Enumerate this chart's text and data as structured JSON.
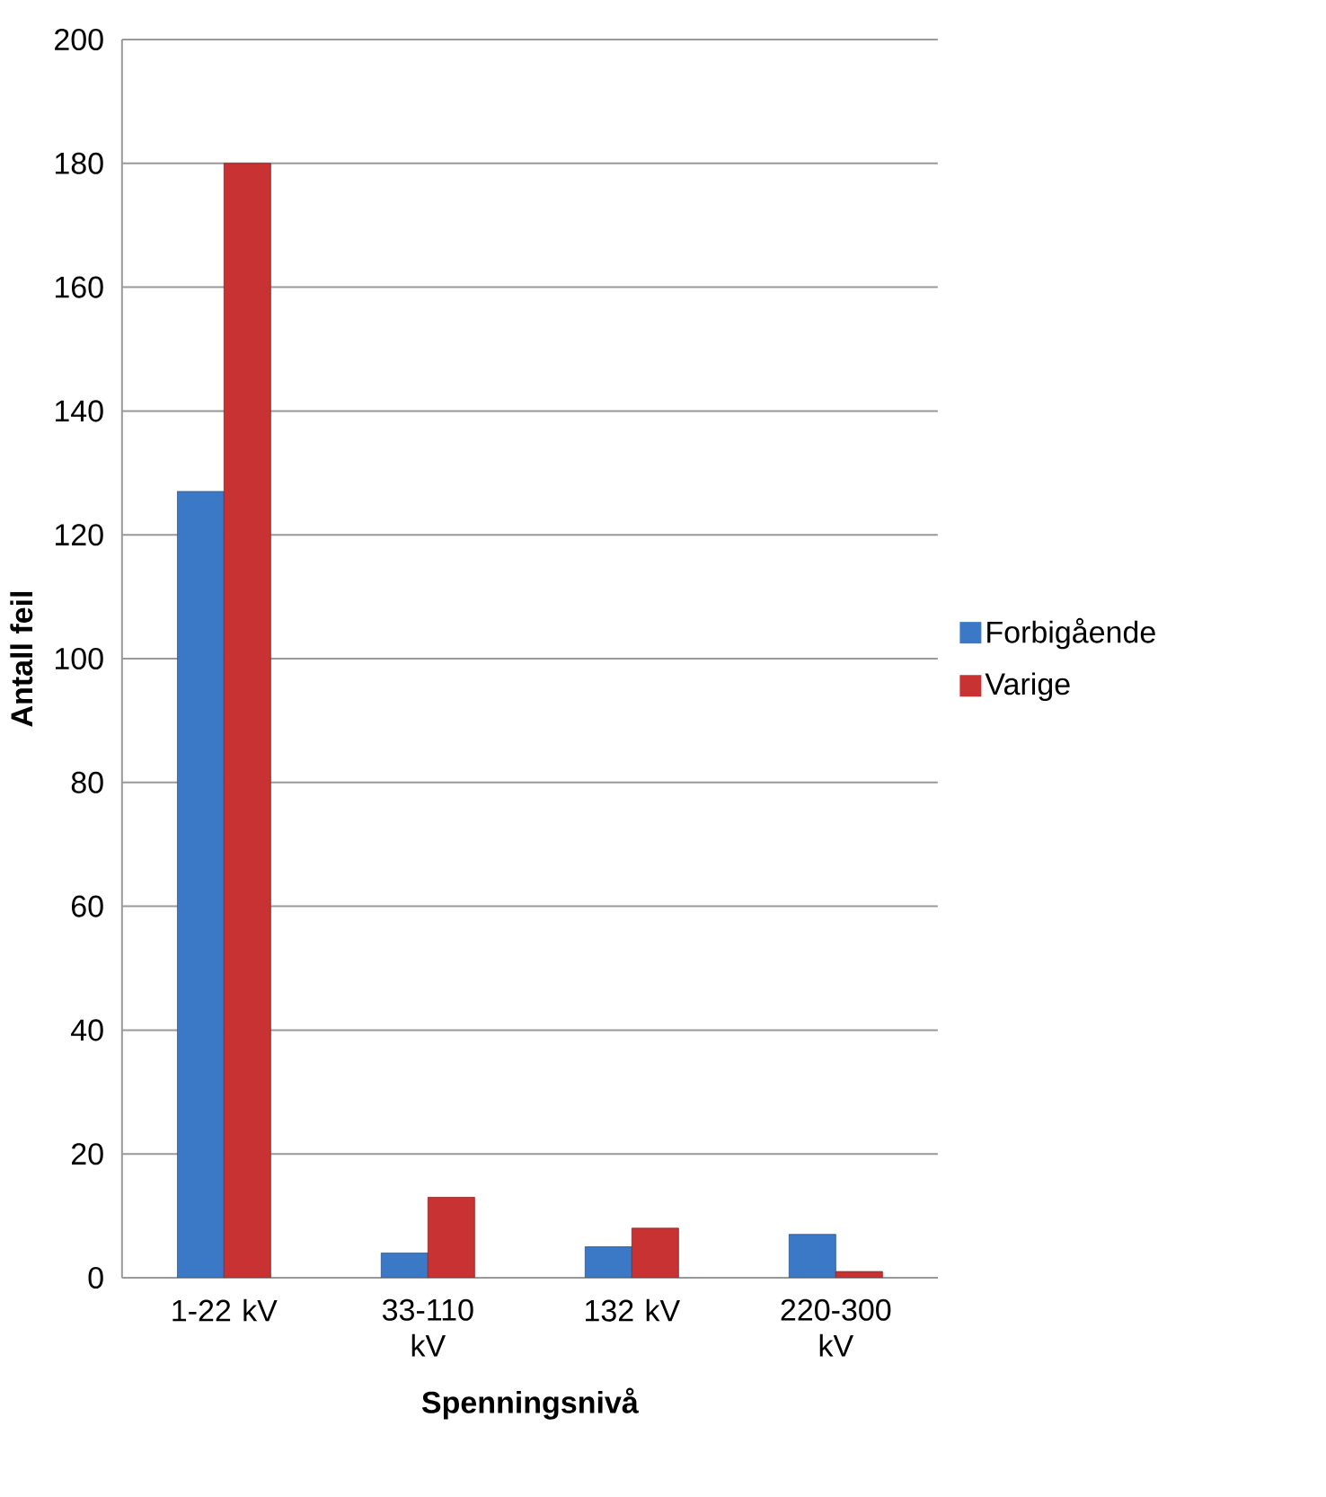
{
  "chart_data": {
    "type": "bar",
    "xlabel": "Spenningsnivå",
    "ylabel": "Antall feil",
    "categories": [
      "1-22 kV",
      "33-110 kV",
      "132 kV",
      "220-300 kV"
    ],
    "series": [
      {
        "name": "Forbigående",
        "color": "#3b78c6",
        "values": [
          127,
          4,
          5,
          7
        ]
      },
      {
        "name": "Varige",
        "color": "#c93232",
        "values": [
          180,
          13,
          8,
          1
        ]
      }
    ],
    "ylim": [
      0,
      200
    ],
    "yticks": [
      0,
      20,
      40,
      60,
      80,
      100,
      120,
      140,
      160,
      180,
      200
    ],
    "grid": "y",
    "legend": "right"
  }
}
